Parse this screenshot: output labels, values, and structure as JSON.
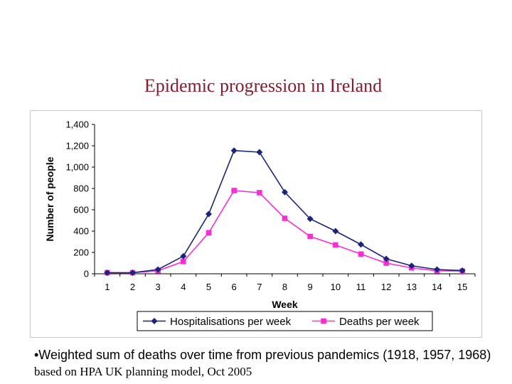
{
  "slide": {
    "title": "Epidemic progression in Ireland",
    "footnote_sans": "•Weighted sum of deaths over time from previous pandemics (1918, 1957, 1968)",
    "footnote_serif": " based on HPA UK planning model, Oct 2005"
  },
  "chart_data": {
    "type": "line",
    "title": "",
    "xlabel": "Week",
    "ylabel": "Number of people",
    "x": [
      1,
      2,
      3,
      4,
      5,
      6,
      7,
      8,
      9,
      10,
      11,
      12,
      13,
      14,
      15
    ],
    "ylim": [
      0,
      1400
    ],
    "yticks": [
      0,
      200,
      400,
      600,
      800,
      1000,
      1200,
      1400
    ],
    "ytick_labels": [
      "0",
      "200",
      "400",
      "600",
      "800",
      "1,000",
      "1,200",
      "1,400"
    ],
    "grid": false,
    "legend_position": "bottom",
    "series": [
      {
        "name": "Hospitalisations per week",
        "color": "#1a237e",
        "marker": "diamond",
        "values": [
          10,
          10,
          40,
          165,
          560,
          1155,
          1140,
          765,
          515,
          400,
          275,
          140,
          75,
          40,
          30
        ]
      },
      {
        "name": "Deaths per week",
        "color": "#ff2bd6",
        "marker": "square",
        "values": [
          10,
          10,
          28,
          115,
          385,
          780,
          760,
          520,
          350,
          270,
          185,
          100,
          55,
          28,
          25
        ]
      }
    ]
  }
}
